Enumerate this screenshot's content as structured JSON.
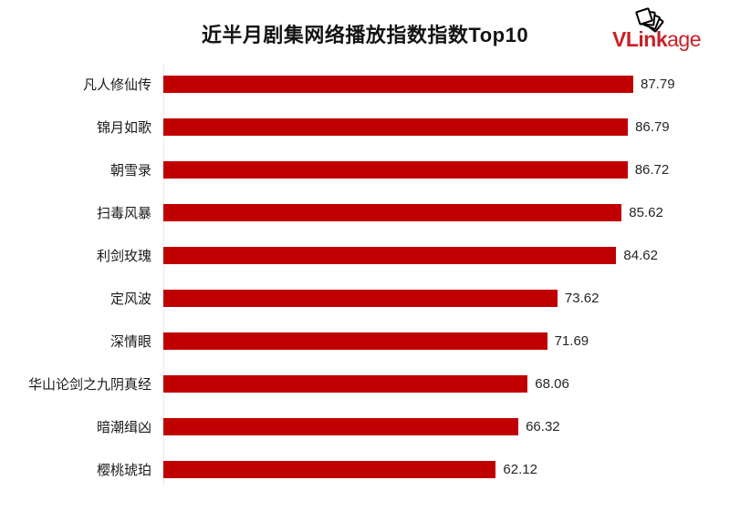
{
  "title": "近半月剧集网络播放指数指数Top10",
  "logo": {
    "bold": "VLink",
    "light": "age",
    "icon": "stacked-photo-frames",
    "color": "#cb2026"
  },
  "colors": {
    "bar": "#c00000",
    "axis_line": "#e9e9e9",
    "title_text": "#141414",
    "label_text": "#1a1a1a",
    "value_text": "#262626",
    "background": "#ffffff"
  },
  "chart_data": {
    "type": "bar",
    "orientation": "horizontal",
    "title": "近半月剧集网络播放指数指数Top10",
    "categories": [
      "凡人修仙传",
      "锦月如歌",
      "朝雪录",
      "扫毒风暴",
      "利剑玫瑰",
      "定风波",
      "深情眼",
      "华山论剑之九阴真经",
      "暗潮缉凶",
      "樱桃琥珀"
    ],
    "values": [
      87.79,
      86.79,
      86.72,
      85.62,
      84.62,
      73.62,
      71.69,
      68.06,
      66.32,
      62.12
    ],
    "value_labels": [
      "87.79",
      "86.79",
      "86.72",
      "85.62",
      "84.62",
      "73.62",
      "71.69",
      "68.06",
      "66.32",
      "62.12"
    ],
    "xlabel": "",
    "ylabel": "",
    "xlim": [
      0,
      87.79
    ],
    "grid": false,
    "legend": false,
    "bar_color": "#c00000"
  }
}
